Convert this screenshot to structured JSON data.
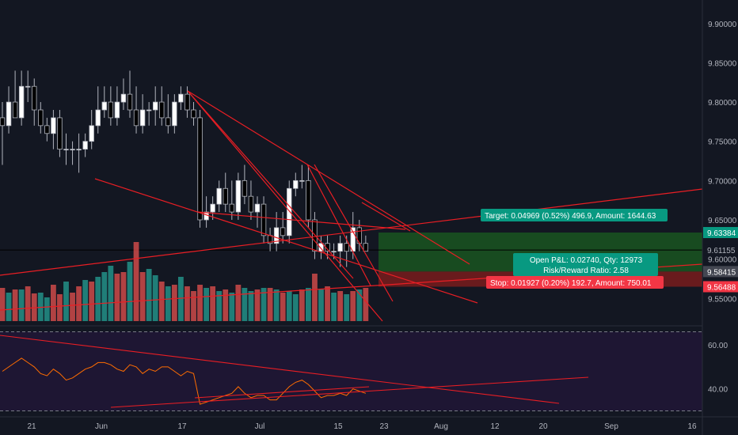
{
  "colors": {
    "background": "#131722",
    "candle_up": "#ffffff",
    "candle_down": "#000000",
    "candle_border": "#b2b5be",
    "volume_up": "#26a69a",
    "volume_down": "#ef5350",
    "trendline": "#e91e24",
    "target_zone": "#1b5e20",
    "stop_zone": "#7f1d1d",
    "rsi_panel": "#1e1633",
    "rsi_line": "#ff6d00",
    "profit_tag": "#089981",
    "loss_tag": "#f23645"
  },
  "chart_data": [
    {
      "type": "candlestick",
      "title": "",
      "price_axis": {
        "ticks": [
          "9.90000",
          "9.85000",
          "9.80000",
          "9.75000",
          "9.70000",
          "9.65000",
          "9.60000",
          "9.55000"
        ],
        "range": [
          9.515,
          9.93
        ]
      },
      "time_axis": {
        "ticks": [
          "21",
          "Jun",
          "17",
          "Jul",
          "15",
          "23",
          "Aug",
          "12",
          "20",
          "Sep",
          "16"
        ]
      },
      "current_price": "9.61155",
      "price_tags": [
        {
          "label": "9.63384",
          "color": "green"
        },
        {
          "label": "9.58415",
          "color": "gray"
        },
        {
          "label": "9.56488",
          "color": "red"
        }
      ],
      "position": {
        "target_label": "Target: 0.04969 (0.52%) 496.9, Amount: 1644.63",
        "center_label_1": "Open P&L: 0.02740, Qty: 12973",
        "center_label_2": "Risk/Reward Ratio: 2.58",
        "stop_label": "Stop: 0.01927 (0.20%) 192.7, Amount: 750.01",
        "entry": 9.58415,
        "target": 9.63384,
        "stop": 9.56488
      },
      "candles": [
        [
          9.78,
          9.8,
          9.72,
          9.77
        ],
        [
          9.77,
          9.82,
          9.76,
          9.8
        ],
        [
          9.8,
          9.84,
          9.78,
          9.78
        ],
        [
          9.78,
          9.84,
          9.77,
          9.82
        ],
        [
          9.82,
          9.84,
          9.8,
          9.82
        ],
        [
          9.82,
          9.83,
          9.77,
          9.79
        ],
        [
          9.79,
          9.8,
          9.76,
          9.77
        ],
        [
          9.77,
          9.78,
          9.75,
          9.76
        ],
        [
          9.76,
          9.79,
          9.74,
          9.78
        ],
        [
          9.78,
          9.79,
          9.73,
          9.74
        ],
        [
          9.74,
          9.76,
          9.72,
          9.74
        ],
        [
          9.74,
          9.75,
          9.72,
          9.74
        ],
        [
          9.74,
          9.76,
          9.71,
          9.74
        ],
        [
          9.74,
          9.76,
          9.73,
          9.75
        ],
        [
          9.75,
          9.79,
          9.74,
          9.77
        ],
        [
          9.77,
          9.82,
          9.76,
          9.79
        ],
        [
          9.79,
          9.82,
          9.78,
          9.8
        ],
        [
          9.8,
          9.82,
          9.77,
          9.78
        ],
        [
          9.78,
          9.82,
          9.77,
          9.8
        ],
        [
          9.8,
          9.83,
          9.79,
          9.81
        ],
        [
          9.81,
          9.84,
          9.78,
          9.79
        ],
        [
          9.79,
          9.82,
          9.76,
          9.77
        ],
        [
          9.77,
          9.81,
          9.76,
          9.79
        ],
        [
          9.79,
          9.8,
          9.77,
          9.79
        ],
        [
          9.79,
          9.82,
          9.77,
          9.8
        ],
        [
          9.8,
          9.82,
          9.77,
          9.78
        ],
        [
          9.78,
          9.81,
          9.76,
          9.77
        ],
        [
          9.77,
          9.81,
          9.76,
          9.8
        ],
        [
          9.8,
          9.82,
          9.79,
          9.81
        ],
        [
          9.81,
          9.82,
          9.78,
          9.79
        ],
        [
          9.79,
          9.8,
          9.77,
          9.78
        ],
        [
          9.78,
          9.79,
          9.64,
          9.65
        ],
        [
          9.65,
          9.68,
          9.64,
          9.66
        ],
        [
          9.66,
          9.68,
          9.65,
          9.67
        ],
        [
          9.67,
          9.7,
          9.66,
          9.69
        ],
        [
          9.69,
          9.71,
          9.66,
          9.67
        ],
        [
          9.67,
          9.7,
          9.65,
          9.66
        ],
        [
          9.66,
          9.71,
          9.65,
          9.7
        ],
        [
          9.7,
          9.72,
          9.67,
          9.68
        ],
        [
          9.68,
          9.7,
          9.65,
          9.66
        ],
        [
          9.66,
          9.68,
          9.64,
          9.67
        ],
        [
          9.67,
          9.68,
          9.62,
          9.63
        ],
        [
          9.63,
          9.64,
          9.61,
          9.62
        ],
        [
          9.62,
          9.66,
          9.61,
          9.64
        ],
        [
          9.64,
          9.66,
          9.62,
          9.63
        ],
        [
          9.63,
          9.7,
          9.62,
          9.69
        ],
        [
          9.69,
          9.71,
          9.68,
          9.7
        ],
        [
          9.7,
          9.72,
          9.69,
          9.7
        ],
        [
          9.7,
          9.72,
          9.64,
          9.65
        ],
        [
          9.65,
          9.66,
          9.6,
          9.61
        ],
        [
          9.61,
          9.63,
          9.6,
          9.62
        ],
        [
          9.62,
          9.63,
          9.6,
          9.61
        ],
        [
          9.61,
          9.62,
          9.6,
          9.61
        ],
        [
          9.61,
          9.63,
          9.59,
          9.62
        ],
        [
          9.62,
          9.63,
          9.59,
          9.61
        ],
        [
          9.61,
          9.66,
          9.6,
          9.64
        ],
        [
          9.64,
          9.65,
          9.61,
          9.62
        ],
        [
          9.62,
          9.63,
          9.61,
          9.61
        ]
      ],
      "volume_colors": "rgrgrrggrrgrrgrgggrrgrrggrgrgrrrgrgrgrggrgrgrggrgrgrgrgrg",
      "volumes": [
        0.42,
        0.36,
        0.4,
        0.4,
        0.44,
        0.35,
        0.36,
        0.3,
        0.46,
        0.34,
        0.5,
        0.36,
        0.44,
        0.52,
        0.5,
        0.56,
        0.62,
        0.7,
        0.6,
        0.62,
        0.75,
        1.0,
        0.62,
        0.66,
        0.58,
        0.5,
        0.44,
        0.46,
        0.56,
        0.44,
        0.38,
        0.46,
        0.42,
        0.44,
        0.38,
        0.4,
        0.36,
        0.46,
        0.42,
        0.38,
        0.4,
        0.42,
        0.42,
        0.4,
        0.36,
        0.38,
        0.34,
        0.4,
        0.42,
        0.6,
        0.4,
        0.44,
        0.36,
        0.38,
        0.34,
        0.38,
        0.4,
        0.42
      ]
    },
    {
      "type": "line",
      "title": "",
      "y_axis": {
        "ticks": [
          "60.00",
          "40.00"
        ],
        "range": [
          28,
          68
        ]
      },
      "series": [
        {
          "values": [
            48,
            50,
            52,
            54,
            52,
            50,
            47,
            46,
            49,
            47,
            44,
            45,
            47,
            49,
            50,
            52,
            52,
            51,
            49,
            48,
            51,
            50,
            47,
            49,
            48,
            50,
            50,
            48,
            46,
            48,
            47,
            33,
            34,
            35,
            36,
            37,
            38,
            41,
            38,
            36,
            37,
            37,
            35,
            35,
            38,
            41,
            43,
            44,
            42,
            39,
            36,
            37,
            37,
            38,
            37,
            40,
            39,
            38
          ]
        }
      ]
    }
  ]
}
